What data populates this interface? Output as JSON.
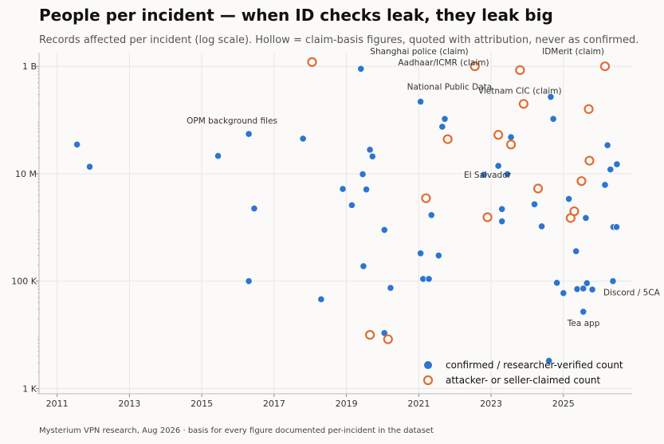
{
  "title": "People per incident — when ID checks leak, they leak big",
  "subtitle": "Records affected per incident (log scale). Hollow = claim-basis figures, quoted with attribution, never as confirmed.",
  "footer": "Mysterium VPN research, Aug 2026 · basis for every figure documented per-incident in the dataset",
  "chart_data": {
    "type": "scatter",
    "y_scale": "log",
    "xlim": [
      2010.5,
      2026.9
    ],
    "ylim": [
      800,
      1800000000
    ],
    "x_ticks": [
      2011,
      2013,
      2015,
      2017,
      2019,
      2021,
      2023,
      2025
    ],
    "y_ticks": [
      {
        "value": 1000,
        "label": "1 K"
      },
      {
        "value": 100000,
        "label": "100 K"
      },
      {
        "value": 10000000,
        "label": "10 M"
      },
      {
        "value": 1000000000,
        "label": "1 B"
      }
    ],
    "grid": true,
    "legend_position": "bottom-right",
    "colors": {
      "confirmed": "#2e74d0",
      "claimed": "#e36b32"
    },
    "series": [
      {
        "name": "confirmed / researcher-verified count",
        "style": "filled",
        "points": [
          [
            2011.55,
            35000000
          ],
          [
            2011.9,
            13500000
          ],
          [
            2015.45,
            21500000
          ],
          [
            2016.3,
            55000000
          ],
          [
            2016.45,
            2250000
          ],
          [
            2016.3,
            100000
          ],
          [
            2017.8,
            45000000
          ],
          [
            2018.3,
            46000
          ],
          [
            2018.9,
            5200000
          ],
          [
            2019.15,
            2600000
          ],
          [
            2019.4,
            900000000
          ],
          [
            2019.45,
            9800000
          ],
          [
            2019.55,
            5100000
          ],
          [
            2019.65,
            28000000
          ],
          [
            2019.72,
            21000000
          ],
          [
            2019.47,
            190000
          ],
          [
            2020.05,
            900000
          ],
          [
            2020.22,
            75000
          ],
          [
            2020.05,
            10800
          ],
          [
            2021.05,
            330000
          ],
          [
            2021.05,
            220000000
          ],
          [
            2021.12,
            110000
          ],
          [
            2021.28,
            110000
          ],
          [
            2021.35,
            1700000
          ],
          [
            2021.55,
            300000
          ],
          [
            2021.65,
            75000000
          ],
          [
            2021.72,
            105000000
          ],
          [
            2022.8,
            9600000
          ],
          [
            2023.2,
            14000000
          ],
          [
            2023.3,
            2200000
          ],
          [
            2023.3,
            1300000
          ],
          [
            2023.45,
            9800000
          ],
          [
            2023.55,
            48000000
          ],
          [
            2024.2,
            2700000
          ],
          [
            2024.3,
            5300000
          ],
          [
            2024.4,
            1050000
          ],
          [
            2024.6,
            3300
          ],
          [
            2024.65,
            270000000
          ],
          [
            2024.72,
            105000000
          ],
          [
            2024.82,
            93000
          ],
          [
            2025.0,
            60000
          ],
          [
            2025.15,
            3400000
          ],
          [
            2025.35,
            360000
          ],
          [
            2025.38,
            71000
          ],
          [
            2025.55,
            73000
          ],
          [
            2025.55,
            27000
          ],
          [
            2025.62,
            1500000
          ],
          [
            2025.65,
            92000
          ],
          [
            2025.8,
            70000
          ],
          [
            2026.15,
            6200000
          ],
          [
            2026.22,
            34000000
          ],
          [
            2026.3,
            12000000
          ],
          [
            2026.38,
            1020000
          ],
          [
            2026.47,
            1020000
          ],
          [
            2026.48,
            15000000
          ],
          [
            2026.37,
            100000
          ]
        ]
      },
      {
        "name": "attacker- or seller-claimed count",
        "style": "hollow",
        "points": [
          [
            2018.05,
            1200000000
          ],
          [
            2019.65,
            10000
          ],
          [
            2020.15,
            8300
          ],
          [
            2021.2,
            3500000
          ],
          [
            2021.8,
            44000000
          ],
          [
            2022.55,
            1000000000
          ],
          [
            2022.9,
            1550000
          ],
          [
            2023.2,
            53000000
          ],
          [
            2023.55,
            35000000
          ],
          [
            2023.8,
            850000000
          ],
          [
            2023.9,
            200000000
          ],
          [
            2024.3,
            5300000
          ],
          [
            2025.2,
            1500000
          ],
          [
            2025.3,
            2000000
          ],
          [
            2025.5,
            7300000
          ],
          [
            2025.7,
            160000000
          ],
          [
            2025.72,
            17500000
          ],
          [
            2026.15,
            1000000000
          ]
        ]
      }
    ],
    "annotations": [
      {
        "text": "Shanghai police (claim)",
        "x": 2022.55,
        "y": 1000000000
      },
      {
        "text": "IDMerit (claim)",
        "x": 2026.15,
        "y": 1000000000
      },
      {
        "text": "Aadhaar/ICMR (claim)",
        "x": 2023.8,
        "y": 850000000
      },
      {
        "text": "National Public Data",
        "x": 2021.05,
        "y": 220000000
      },
      {
        "text": "Vietnam CIC (claim)",
        "x": 2023.9,
        "y": 200000000
      },
      {
        "text": "OPM background files",
        "x": 2016.3,
        "y": 55000000
      },
      {
        "text": "El Salvador",
        "x": 2022.8,
        "y": 9600000
      },
      {
        "text": "Discord / 5CA",
        "x": 2026.37,
        "y": 100000
      },
      {
        "text": "Tea app",
        "x": 2025.55,
        "y": 27000
      }
    ]
  }
}
